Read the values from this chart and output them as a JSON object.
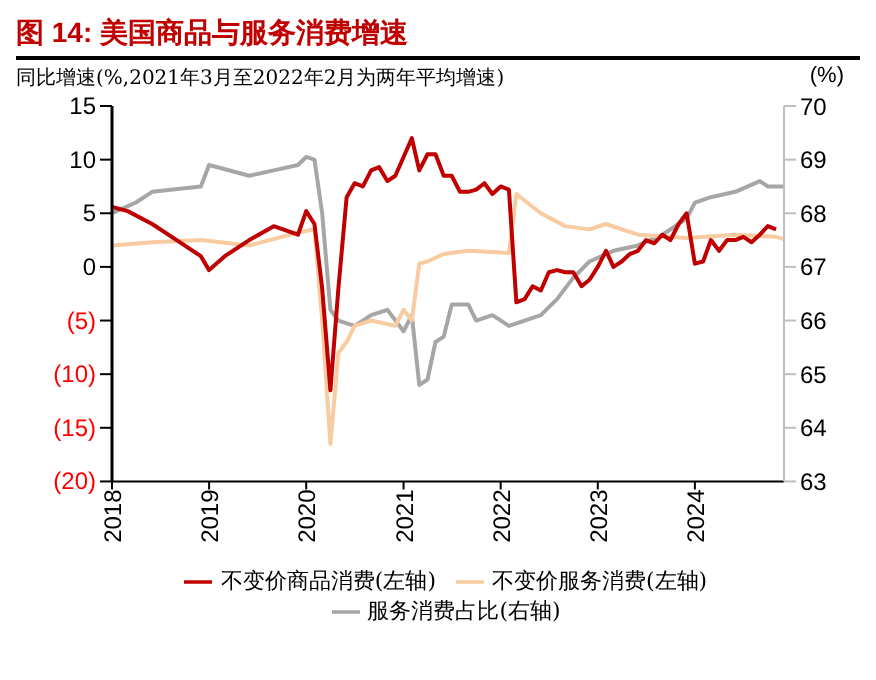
{
  "chart_data": {
    "type": "line",
    "title": "图 14: 美国商品与服务消费增速",
    "ylabel": "同比增速(%,2021年3月至2022年2月为两年平均增速)",
    "y2label": "(%)",
    "xlim": [
      "2018-01",
      "2024-12"
    ],
    "xticks": [
      {
        "value": "2018-01",
        "label": "2018"
      },
      {
        "value": "2019-01",
        "label": "2019"
      },
      {
        "value": "2020-01",
        "label": "2020"
      },
      {
        "value": "2021-01",
        "label": "2021"
      },
      {
        "value": "2022-01",
        "label": "2022"
      },
      {
        "value": "2023-01",
        "label": "2023"
      },
      {
        "value": "2024-01",
        "label": "2024"
      }
    ],
    "ylim": [
      -20,
      15
    ],
    "yticks": [
      {
        "value": -20,
        "label": "(20)"
      },
      {
        "value": -15,
        "label": "(15)"
      },
      {
        "value": -10,
        "label": "(10)"
      },
      {
        "value": -5,
        "label": "(5)"
      },
      0,
      5,
      10,
      15
    ],
    "y2lim": [
      63,
      70
    ],
    "y2ticks": [
      63,
      64,
      65,
      66,
      67,
      68,
      69,
      70
    ],
    "legend": "bottom",
    "marker": "none",
    "line_style": "solid",
    "series": [
      {
        "name": "不变价商品消费(左轴)",
        "color": "#c00000",
        "x": [
          "2018-01",
          "2018-03",
          "2018-06",
          "2018-09",
          "2018-12",
          "2019-01",
          "2019-03",
          "2019-06",
          "2019-09",
          "2019-12",
          "2020-01",
          "2020-02",
          "2020-03",
          "2020-04",
          "2020-05",
          "2020-06",
          "2020-07",
          "2020-08",
          "2020-09",
          "2020-10",
          "2020-11",
          "2020-12",
          "2021-02",
          "2021-03",
          "2021-04",
          "2021-05",
          "2021-06",
          "2021-07",
          "2021-08",
          "2021-09",
          "2021-10",
          "2021-11",
          "2021-12",
          "2022-01",
          "2022-02",
          "2022-03",
          "2022-04",
          "2022-05",
          "2022-06",
          "2022-07",
          "2022-08",
          "2022-09",
          "2022-10",
          "2022-11",
          "2022-12",
          "2023-01",
          "2023-02",
          "2023-03",
          "2023-04",
          "2023-05",
          "2023-06",
          "2023-07",
          "2023-08",
          "2023-09",
          "2023-10",
          "2023-11",
          "2023-12",
          "2024-01",
          "2024-02",
          "2024-03",
          "2024-04",
          "2024-05",
          "2024-06",
          "2024-07",
          "2024-08",
          "2024-09",
          "2024-10",
          "2024-11"
        ],
        "values": [
          5.6,
          5.2,
          4,
          2.5,
          1,
          -0.3,
          1,
          2.5,
          3.8,
          3,
          5.2,
          4,
          -2,
          -11.5,
          -2,
          6.5,
          7.8,
          7.5,
          9,
          9.3,
          8,
          8.5,
          12,
          9,
          10.5,
          10.5,
          8.5,
          8.5,
          7,
          7,
          7.2,
          7.8,
          6.8,
          7.5,
          7.2,
          -3.3,
          -3,
          -1.8,
          -2.2,
          -0.5,
          -0.3,
          -0.5,
          -0.5,
          -1.8,
          -1.2,
          0,
          1.5,
          0,
          0.5,
          1.2,
          1.5,
          2.5,
          2.2,
          3,
          2.5,
          4,
          5,
          0.3,
          0.5,
          2.5,
          1.5,
          2.5,
          2.5,
          2.8,
          2.3,
          3,
          3.8,
          3.5
        ]
      },
      {
        "name": "不变价服务消费(左轴)",
        "color": "#f8cba0",
        "x": [
          "2018-01",
          "2018-06",
          "2018-12",
          "2019-06",
          "2019-12",
          "2020-02",
          "2020-03",
          "2020-04",
          "2020-05",
          "2020-06",
          "2020-07",
          "2020-09",
          "2020-12",
          "2021-01",
          "2021-02",
          "2021-03",
          "2021-04",
          "2021-06",
          "2021-09",
          "2021-12",
          "2022-02",
          "2022-03",
          "2022-06",
          "2022-09",
          "2022-12",
          "2023-02",
          "2023-06",
          "2023-12",
          "2024-06",
          "2024-11",
          "2024-12"
        ],
        "values": [
          2,
          2.3,
          2.5,
          2,
          3.2,
          3.5,
          -5,
          -16.5,
          -8,
          -7,
          -5.5,
          -5,
          -5.5,
          -4,
          -5,
          0.3,
          0.5,
          1.2,
          1.5,
          1.4,
          1.3,
          6.8,
          5,
          3.8,
          3.5,
          4,
          3,
          2.7,
          3,
          2.8,
          2.6
        ]
      },
      {
        "name": "服务消费占比(右轴)",
        "color": "#a6a6a6",
        "axis": "y2",
        "x": [
          "2018-01",
          "2018-04",
          "2018-06",
          "2018-12",
          "2019-01",
          "2019-06",
          "2019-09",
          "2019-12",
          "2020-01",
          "2020-02",
          "2020-03",
          "2020-04",
          "2020-05",
          "2020-07",
          "2020-09",
          "2020-11",
          "2021-01",
          "2021-02",
          "2021-03",
          "2021-04",
          "2021-05",
          "2021-06",
          "2021-07",
          "2021-09",
          "2021-10",
          "2021-12",
          "2022-02",
          "2022-04",
          "2022-06",
          "2022-08",
          "2022-10",
          "2022-12",
          "2023-03",
          "2023-06",
          "2023-09",
          "2023-12",
          "2024-01",
          "2024-03",
          "2024-06",
          "2024-09",
          "2024-10",
          "2024-12"
        ],
        "values": [
          68,
          68.2,
          68.4,
          68.5,
          68.9,
          68.7,
          68.8,
          68.9,
          69.05,
          69,
          68,
          66.2,
          66,
          65.9,
          66.1,
          66.2,
          65.8,
          66.1,
          64.8,
          64.9,
          65.6,
          65.7,
          66.3,
          66.3,
          66,
          66.1,
          65.9,
          66,
          66.1,
          66.4,
          66.8,
          67.1,
          67.3,
          67.4,
          67.6,
          67.9,
          68.2,
          68.3,
          68.4,
          68.6,
          68.5,
          68.5
        ]
      }
    ]
  }
}
